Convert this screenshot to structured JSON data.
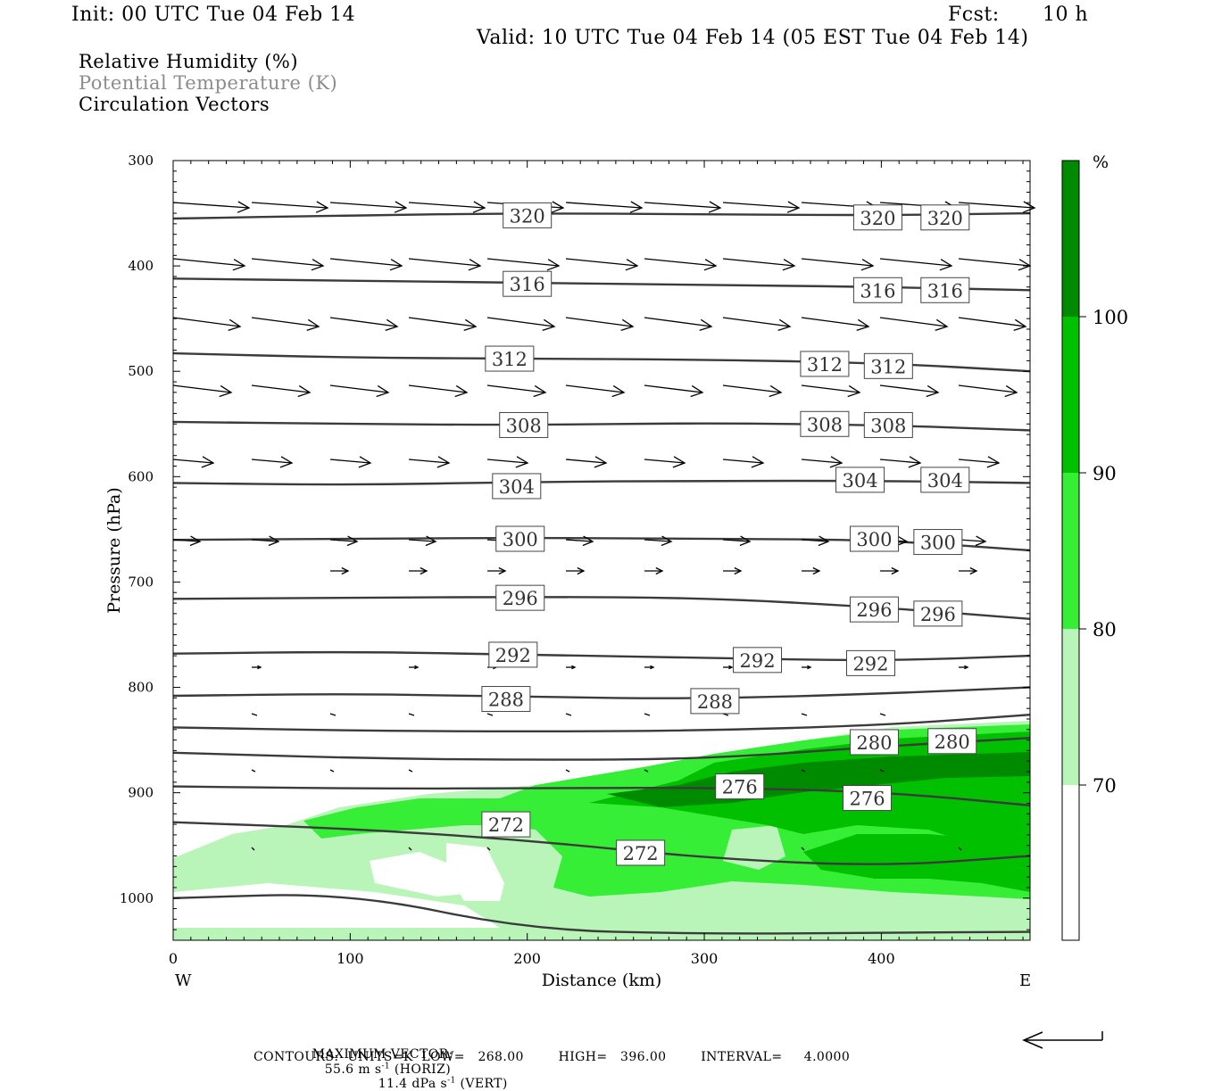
{
  "header": {
    "init": "Init: 00 UTC Tue 04 Feb 14",
    "fcst_label": "Fcst:",
    "fcst_value": "10 h",
    "valid": "Valid: 10 UTC Tue 04 Feb 14 (05 EST Tue 04 Feb 14)"
  },
  "fields": {
    "rh": "Relative Humidity (%)",
    "theta": "Potential Temperature (K)",
    "vectors": "Circulation Vectors"
  },
  "footer": {
    "max_vector_label": "MAXIMUM VECTOR:",
    "horiz_prefix": "55.6 m s",
    "horiz_exp": "-1",
    "horiz_suffix": " (HORIZ)",
    "vert_prefix": "11.4 dPa s",
    "vert_exp": "-1",
    "vert_suffix": " (VERT)",
    "contours": "CONTOURS:  UNITS=K  LOW=   268.00        HIGH=   396.00        INTERVAL=     4.0000"
  },
  "colors": {
    "rh70": "#b9f5b9",
    "rh80": "#37ee37",
    "rh90": "#00c000",
    "rh100": "#008a00",
    "contour": "#3b3b3b"
  },
  "chart_data": {
    "type": "cross-section",
    "xlabel": "Distance (km)",
    "ylabel": "Pressure (hPa)",
    "xlim": [
      0,
      484
    ],
    "ylim": [
      1040,
      300
    ],
    "x_ticks": [
      0,
      100,
      200,
      300,
      400
    ],
    "y_ticks": [
      300,
      400,
      500,
      600,
      700,
      800,
      900,
      1000
    ],
    "x_end_labels": {
      "left": "W",
      "right": "E"
    },
    "colorbar": {
      "unit": "%",
      "levels": [
        70,
        80,
        90,
        100
      ],
      "colors": [
        "#b9f5b9",
        "#37ee37",
        "#00c000",
        "#008a00"
      ]
    },
    "theta_contours": [
      {
        "value": 320,
        "x": [
          0,
          100,
          200,
          300,
          400,
          484
        ],
        "p": [
          355,
          352,
          350,
          351,
          352,
          350
        ],
        "labels": [
          {
            "x": 200,
            "p": 352,
            "text": "320"
          },
          {
            "x": 398,
            "p": 354,
            "text": "320"
          },
          {
            "x": 436,
            "p": 354,
            "text": "320"
          }
        ]
      },
      {
        "value": 316,
        "x": [
          0,
          100,
          200,
          300,
          400,
          484
        ],
        "p": [
          412,
          414,
          416,
          418,
          420,
          423
        ],
        "labels": [
          {
            "x": 200,
            "p": 417,
            "text": "316"
          },
          {
            "x": 398,
            "p": 423,
            "text": "316"
          },
          {
            "x": 436,
            "p": 423,
            "text": "316"
          }
        ]
      },
      {
        "value": 312,
        "x": [
          0,
          100,
          200,
          300,
          400,
          484
        ],
        "p": [
          483,
          487,
          488,
          489,
          492,
          500
        ],
        "labels": [
          {
            "x": 190,
            "p": 488,
            "text": "312"
          },
          {
            "x": 368,
            "p": 493,
            "text": "312"
          },
          {
            "x": 404,
            "p": 495,
            "text": "312"
          }
        ]
      },
      {
        "value": 308,
        "x": [
          0,
          100,
          200,
          300,
          400,
          484
        ],
        "p": [
          548,
          550,
          551,
          549,
          551,
          556
        ],
        "labels": [
          {
            "x": 198,
            "p": 551,
            "text": "308"
          },
          {
            "x": 368,
            "p": 550,
            "text": "308"
          },
          {
            "x": 404,
            "p": 551,
            "text": "308"
          }
        ]
      },
      {
        "value": 304,
        "x": [
          0,
          100,
          200,
          300,
          400,
          484
        ],
        "p": [
          606,
          608,
          605,
          604,
          604,
          606
        ],
        "labels": [
          {
            "x": 194,
            "p": 609,
            "text": "304"
          },
          {
            "x": 388,
            "p": 603,
            "text": "304"
          },
          {
            "x": 436,
            "p": 603,
            "text": "304"
          }
        ]
      },
      {
        "value": 300,
        "x": [
          0,
          100,
          200,
          300,
          400,
          484
        ],
        "p": [
          660,
          659,
          658,
          659,
          660,
          670
        ],
        "labels": [
          {
            "x": 196,
            "p": 659,
            "text": "300"
          },
          {
            "x": 396,
            "p": 659,
            "text": "300"
          },
          {
            "x": 432,
            "p": 662,
            "text": "300"
          }
        ]
      },
      {
        "value": 296,
        "x": [
          0,
          100,
          200,
          300,
          400,
          484
        ],
        "p": [
          716,
          715,
          714,
          715,
          724,
          735
        ],
        "labels": [
          {
            "x": 196,
            "p": 715,
            "text": "296"
          },
          {
            "x": 396,
            "p": 726,
            "text": "296"
          },
          {
            "x": 432,
            "p": 730,
            "text": "296"
          }
        ]
      },
      {
        "value": 292,
        "x": [
          0,
          100,
          200,
          300,
          400,
          484
        ],
        "p": [
          768,
          766,
          769,
          772,
          775,
          770
        ],
        "labels": [
          {
            "x": 192,
            "p": 769,
            "text": "292"
          },
          {
            "x": 330,
            "p": 774,
            "text": "292"
          },
          {
            "x": 394,
            "p": 777,
            "text": "292"
          }
        ]
      },
      {
        "value": 288,
        "x": [
          0,
          100,
          200,
          300,
          400,
          484
        ],
        "p": [
          808,
          806,
          809,
          811,
          806,
          800
        ],
        "labels": [
          {
            "x": 188,
            "p": 811,
            "text": "288"
          },
          {
            "x": 306,
            "p": 813,
            "text": "288"
          }
        ]
      },
      {
        "value": 284,
        "x": [
          0,
          100,
          200,
          300,
          400,
          484
        ],
        "p": [
          838,
          841,
          842,
          841,
          836,
          826
        ],
        "labels": []
      },
      {
        "value": 280,
        "x": [
          0,
          100,
          200,
          300,
          400,
          484
        ],
        "p": [
          862,
          867,
          869,
          868,
          856,
          848
        ],
        "labels": [
          {
            "x": 396,
            "p": 852,
            "text": "280"
          },
          {
            "x": 440,
            "p": 851,
            "text": "280"
          }
        ]
      },
      {
        "value": 276,
        "x": [
          0,
          100,
          200,
          300,
          400,
          484
        ],
        "p": [
          894,
          896,
          896,
          895,
          899,
          912
        ],
        "labels": [
          {
            "x": 320,
            "p": 894,
            "text": "276"
          },
          {
            "x": 392,
            "p": 905,
            "text": "276"
          }
        ]
      },
      {
        "value": 272,
        "x": [
          0,
          100,
          200,
          300,
          400,
          484
        ],
        "p": [
          928,
          934,
          945,
          962,
          970,
          960
        ],
        "labels": [
          {
            "x": 188,
            "p": 930,
            "text": "272"
          },
          {
            "x": 264,
            "p": 957,
            "text": "272"
          }
        ]
      },
      {
        "value": 268,
        "x": [
          0,
          100,
          200,
          300,
          400,
          484
        ],
        "p": [
          1000,
          995,
          1030,
          1034,
          1033,
          1032
        ],
        "labels": []
      }
    ],
    "wind_vectors": {
      "max_horiz": 55.6,
      "max_horiz_units": "m s-1",
      "max_vert": 11.4,
      "max_vert_units": "dPa s-1"
    },
    "contour_units": "K",
    "contour_low": 268.0,
    "contour_high": 396.0,
    "contour_interval": 4.0
  }
}
